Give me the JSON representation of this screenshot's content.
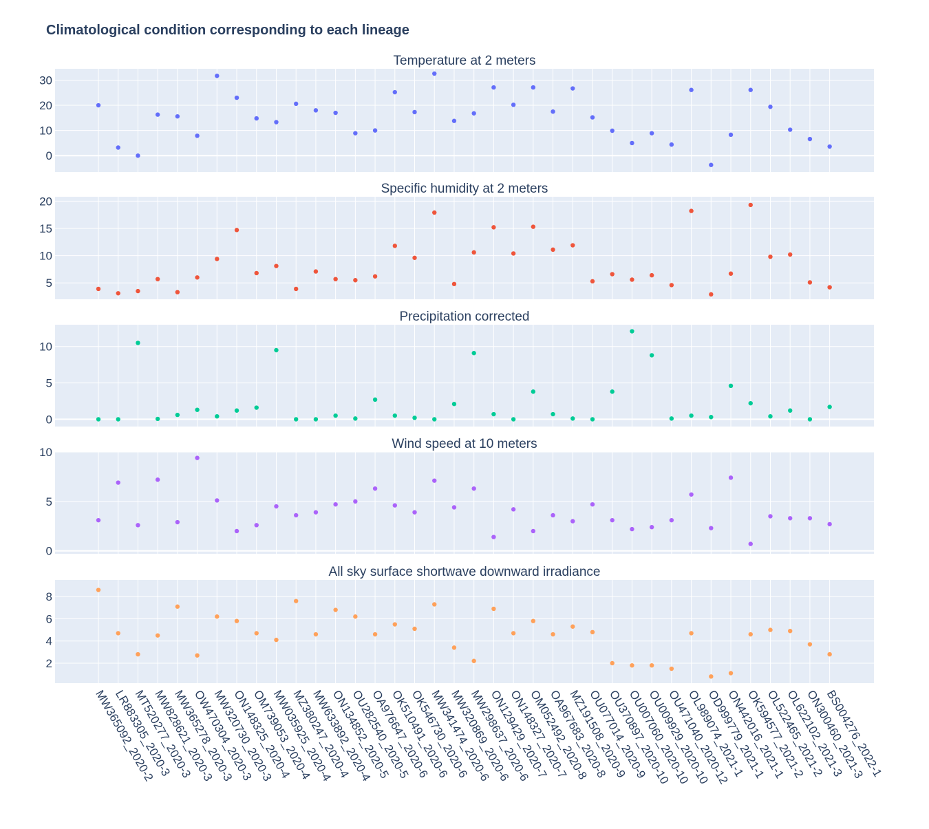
{
  "chart_data": {
    "type": "scatter",
    "title": "Climatological condition corresponding to each lineage",
    "x_categories": [
      "MW365092_2020-2",
      "LR883305_2020-3",
      "MT520277_2020-3",
      "MW828621_2020-3",
      "MW365278_2020-3",
      "OW470304_2020-3",
      "MW320730_2020-3",
      "ON148325_2020-4",
      "OM739053_2020-4",
      "MW035925_2020-4",
      "MZ380247_2020-4",
      "MW633892_2020-4",
      "ON134852_2020-5",
      "OU282540_2020-5",
      "OA976647_2020-6",
      "OK510491_2020-6",
      "OK546730_2020-6",
      "MW341474_2020-6",
      "MW320869_2020-6",
      "MW298637_2020-6",
      "ON129429_2020-7",
      "ON148327_2020-7",
      "OM052492_2020-8",
      "OA967683_2020-8",
      "MZ191508_2020-9",
      "OU077014_2020-9",
      "OU370897_2020-10",
      "OU007060_2020-10",
      "OU009929_2020-10",
      "OU471040_2020-12",
      "OL989074_2021-1",
      "OD999779_2021-1",
      "ON442016_2021-1",
      "OK594577_2021-2",
      "OL522465_2021-2",
      "OL622102_2021-3",
      "ON300460_2021-3",
      "BS004276_2022-1"
    ],
    "panels": [
      {
        "title": "Temperature at 2 meters",
        "color": "#636efa",
        "yticks": [
          0,
          10,
          20,
          30
        ],
        "ylim": [
          -6.5,
          34.5
        ],
        "values": [
          20,
          3.2,
          0,
          16.3,
          15.6,
          7.9,
          31.7,
          23,
          14.8,
          13.3,
          20.6,
          18,
          17,
          8.9,
          10,
          25.2,
          17.3,
          32.6,
          13.8,
          16.8,
          27.1,
          20.2,
          27.1,
          17.5,
          26.7,
          15.2,
          9.9,
          5,
          8.9,
          4.4,
          26.1,
          -3.7,
          8.3,
          26.1,
          19.4,
          10.3,
          6.6,
          3.6
        ]
      },
      {
        "title": "Specific humidity at 2 meters",
        "color": "#ef553b",
        "yticks": [
          5,
          10,
          15,
          20
        ],
        "ylim": [
          2,
          20.8
        ],
        "values": [
          3.9,
          3.1,
          3.5,
          5.7,
          3.3,
          6,
          9.4,
          14.7,
          6.8,
          8.1,
          3.9,
          7.1,
          5.7,
          5.5,
          6.2,
          11.8,
          9.6,
          17.9,
          4.8,
          10.6,
          15.2,
          10.4,
          15.3,
          11.1,
          11.9,
          5.3,
          6.6,
          5.6,
          6.4,
          4.6,
          18.2,
          2.9,
          6.7,
          19.3,
          9.8,
          10.2,
          5.1,
          4.2
        ]
      },
      {
        "title": "Precipitation corrected",
        "color": "#00cc96",
        "yticks": [
          0,
          5,
          10
        ],
        "ylim": [
          -1,
          13
        ],
        "values": [
          0,
          0,
          10.5,
          0.05,
          0.6,
          1.3,
          0.4,
          1.2,
          1.6,
          9.5,
          0,
          0,
          0.5,
          0.1,
          2.7,
          0.5,
          0.2,
          0,
          2.1,
          9.1,
          0.7,
          0,
          3.8,
          0.7,
          0.1,
          0,
          3.8,
          12.1,
          8.8,
          0.1,
          0.5,
          0.3,
          4.6,
          2.2,
          0.4,
          1.2,
          0,
          1.7
        ]
      },
      {
        "title": "Wind speed at 10 meters",
        "color": "#ab63fa",
        "yticks": [
          0,
          5,
          10
        ],
        "ylim": [
          -0.3,
          10
        ],
        "values": [
          3.1,
          6.9,
          2.6,
          7.2,
          2.9,
          9.4,
          5.1,
          2,
          2.6,
          4.5,
          3.6,
          3.9,
          4.7,
          5,
          6.3,
          4.6,
          3.9,
          7.1,
          4.4,
          6.3,
          1.4,
          4.2,
          2,
          3.6,
          3,
          4.7,
          3.1,
          2.2,
          2.4,
          3.1,
          5.7,
          2.3,
          7.4,
          0.7,
          3.5,
          3.3,
          3.3,
          2.7
        ]
      },
      {
        "title": "All sky surface shortwave downward irradiance",
        "color": "#ffa15a",
        "yticks": [
          2,
          4,
          6,
          8
        ],
        "ylim": [
          0.2,
          9.5
        ],
        "values": [
          8.6,
          4.7,
          2.8,
          4.5,
          7.1,
          2.7,
          6.2,
          5.8,
          4.7,
          4.1,
          7.6,
          4.6,
          6.8,
          6.2,
          4.6,
          5.5,
          5.1,
          7.3,
          3.4,
          2.2,
          6.9,
          4.7,
          5.8,
          4.6,
          5.3,
          4.8,
          2,
          1.8,
          1.8,
          1.5,
          4.7,
          0.8,
          1.1,
          4.6,
          5,
          4.9,
          3.7,
          2.8
        ]
      }
    ]
  }
}
